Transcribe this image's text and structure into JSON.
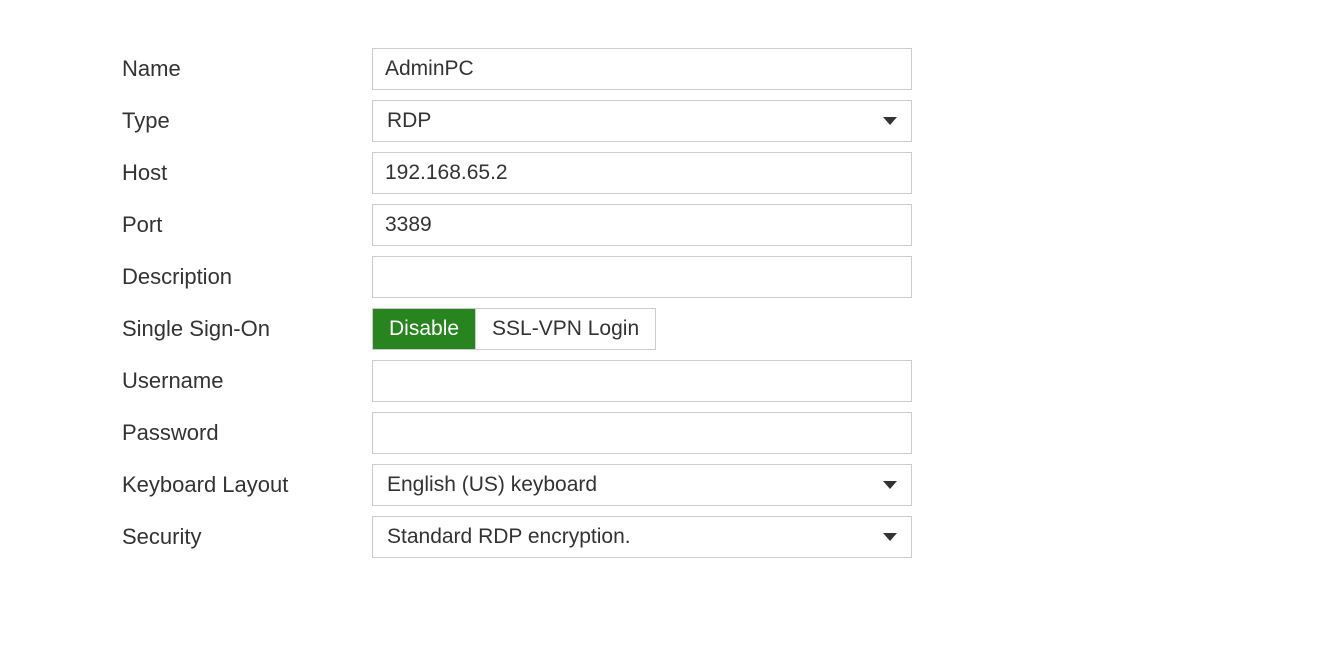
{
  "form": {
    "name": {
      "label": "Name",
      "value": "AdminPC"
    },
    "type": {
      "label": "Type",
      "value": "RDP"
    },
    "host": {
      "label": "Host",
      "value": "192.168.65.2"
    },
    "port": {
      "label": "Port",
      "value": "3389"
    },
    "description": {
      "label": "Description",
      "value": ""
    },
    "sso": {
      "label": "Single Sign-On",
      "options": [
        "Disable",
        "SSL-VPN Login"
      ],
      "selected": "Disable"
    },
    "username": {
      "label": "Username",
      "value": ""
    },
    "password": {
      "label": "Password",
      "value": ""
    },
    "keyboard": {
      "label": "Keyboard Layout",
      "value": "English (US) keyboard"
    },
    "security": {
      "label": "Security",
      "value": "Standard RDP encryption."
    }
  },
  "colors": {
    "border": "#cccccc",
    "text": "#333333",
    "toggle_active_bg": "#27841f",
    "toggle_active_text": "#ffffff",
    "background": "#ffffff"
  }
}
